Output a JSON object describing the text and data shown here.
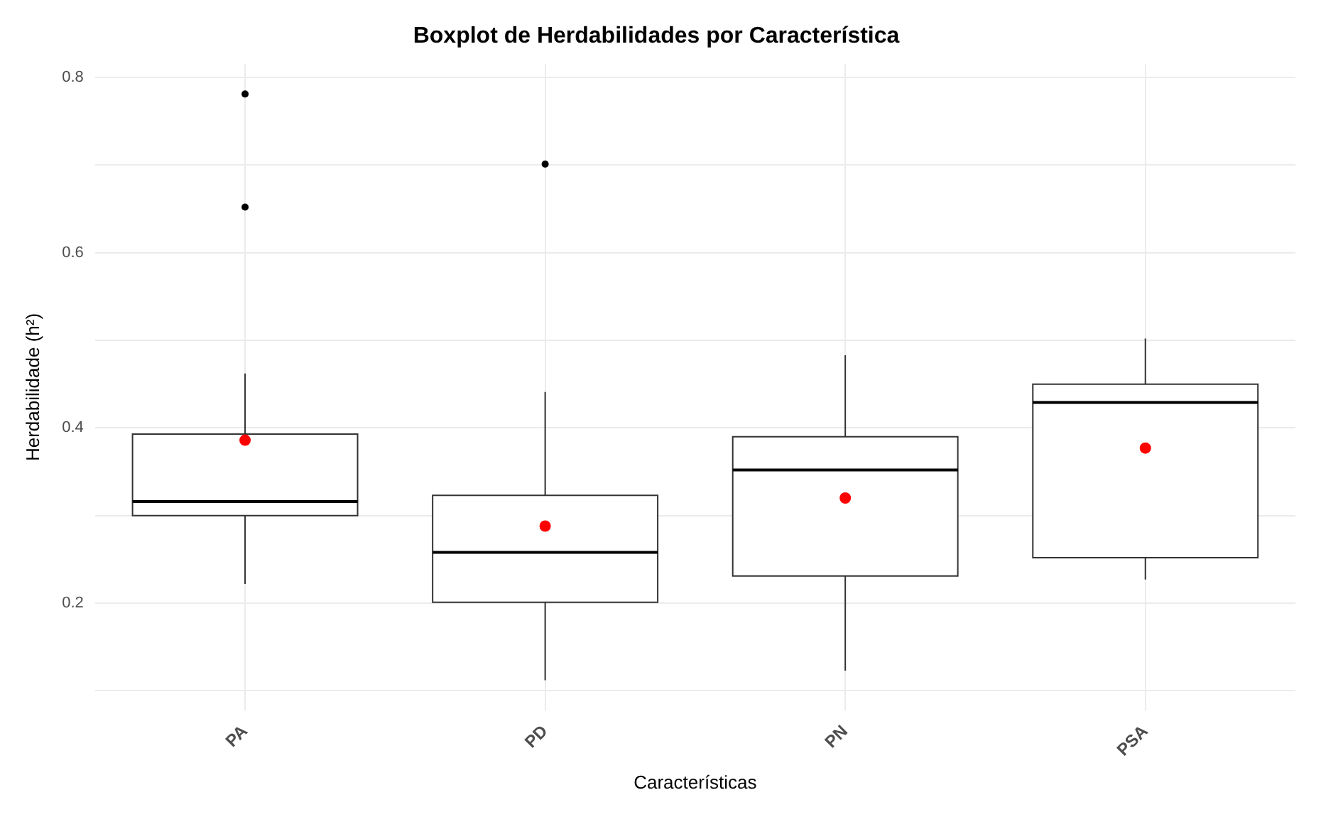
{
  "chart_data": {
    "type": "box",
    "title": "Boxplot de Herdabilidades por Característica",
    "xlabel": "Características",
    "ylabel": "Herdabilidade (h²)",
    "categories": [
      "PA",
      "PD",
      "PN",
      "PSA"
    ],
    "boxes": [
      {
        "low": 0.222,
        "q1": 0.3,
        "median": 0.316,
        "q3": 0.393,
        "high": 0.462,
        "mean": 0.386,
        "outliers": [
          0.781,
          0.652
        ]
      },
      {
        "low": 0.112,
        "q1": 0.201,
        "median": 0.258,
        "q3": 0.323,
        "high": 0.441,
        "mean": 0.288,
        "outliers": [
          0.701
        ]
      },
      {
        "low": 0.123,
        "q1": 0.231,
        "median": 0.352,
        "q3": 0.39,
        "high": 0.483,
        "mean": 0.32
      },
      {
        "low": 0.227,
        "q1": 0.252,
        "median": 0.429,
        "q3": 0.45,
        "high": 0.502,
        "mean": 0.377
      }
    ],
    "ylim": [
      0.078,
      0.815
    ],
    "yticks": [
      {
        "value": 0.1,
        "label": null
      },
      0.2,
      {
        "value": 0.3,
        "label": null
      },
      0.4,
      {
        "value": 0.5,
        "label": null
      },
      0.6,
      {
        "value": 0.7,
        "label": null
      },
      0.8
    ],
    "grid": true
  }
}
